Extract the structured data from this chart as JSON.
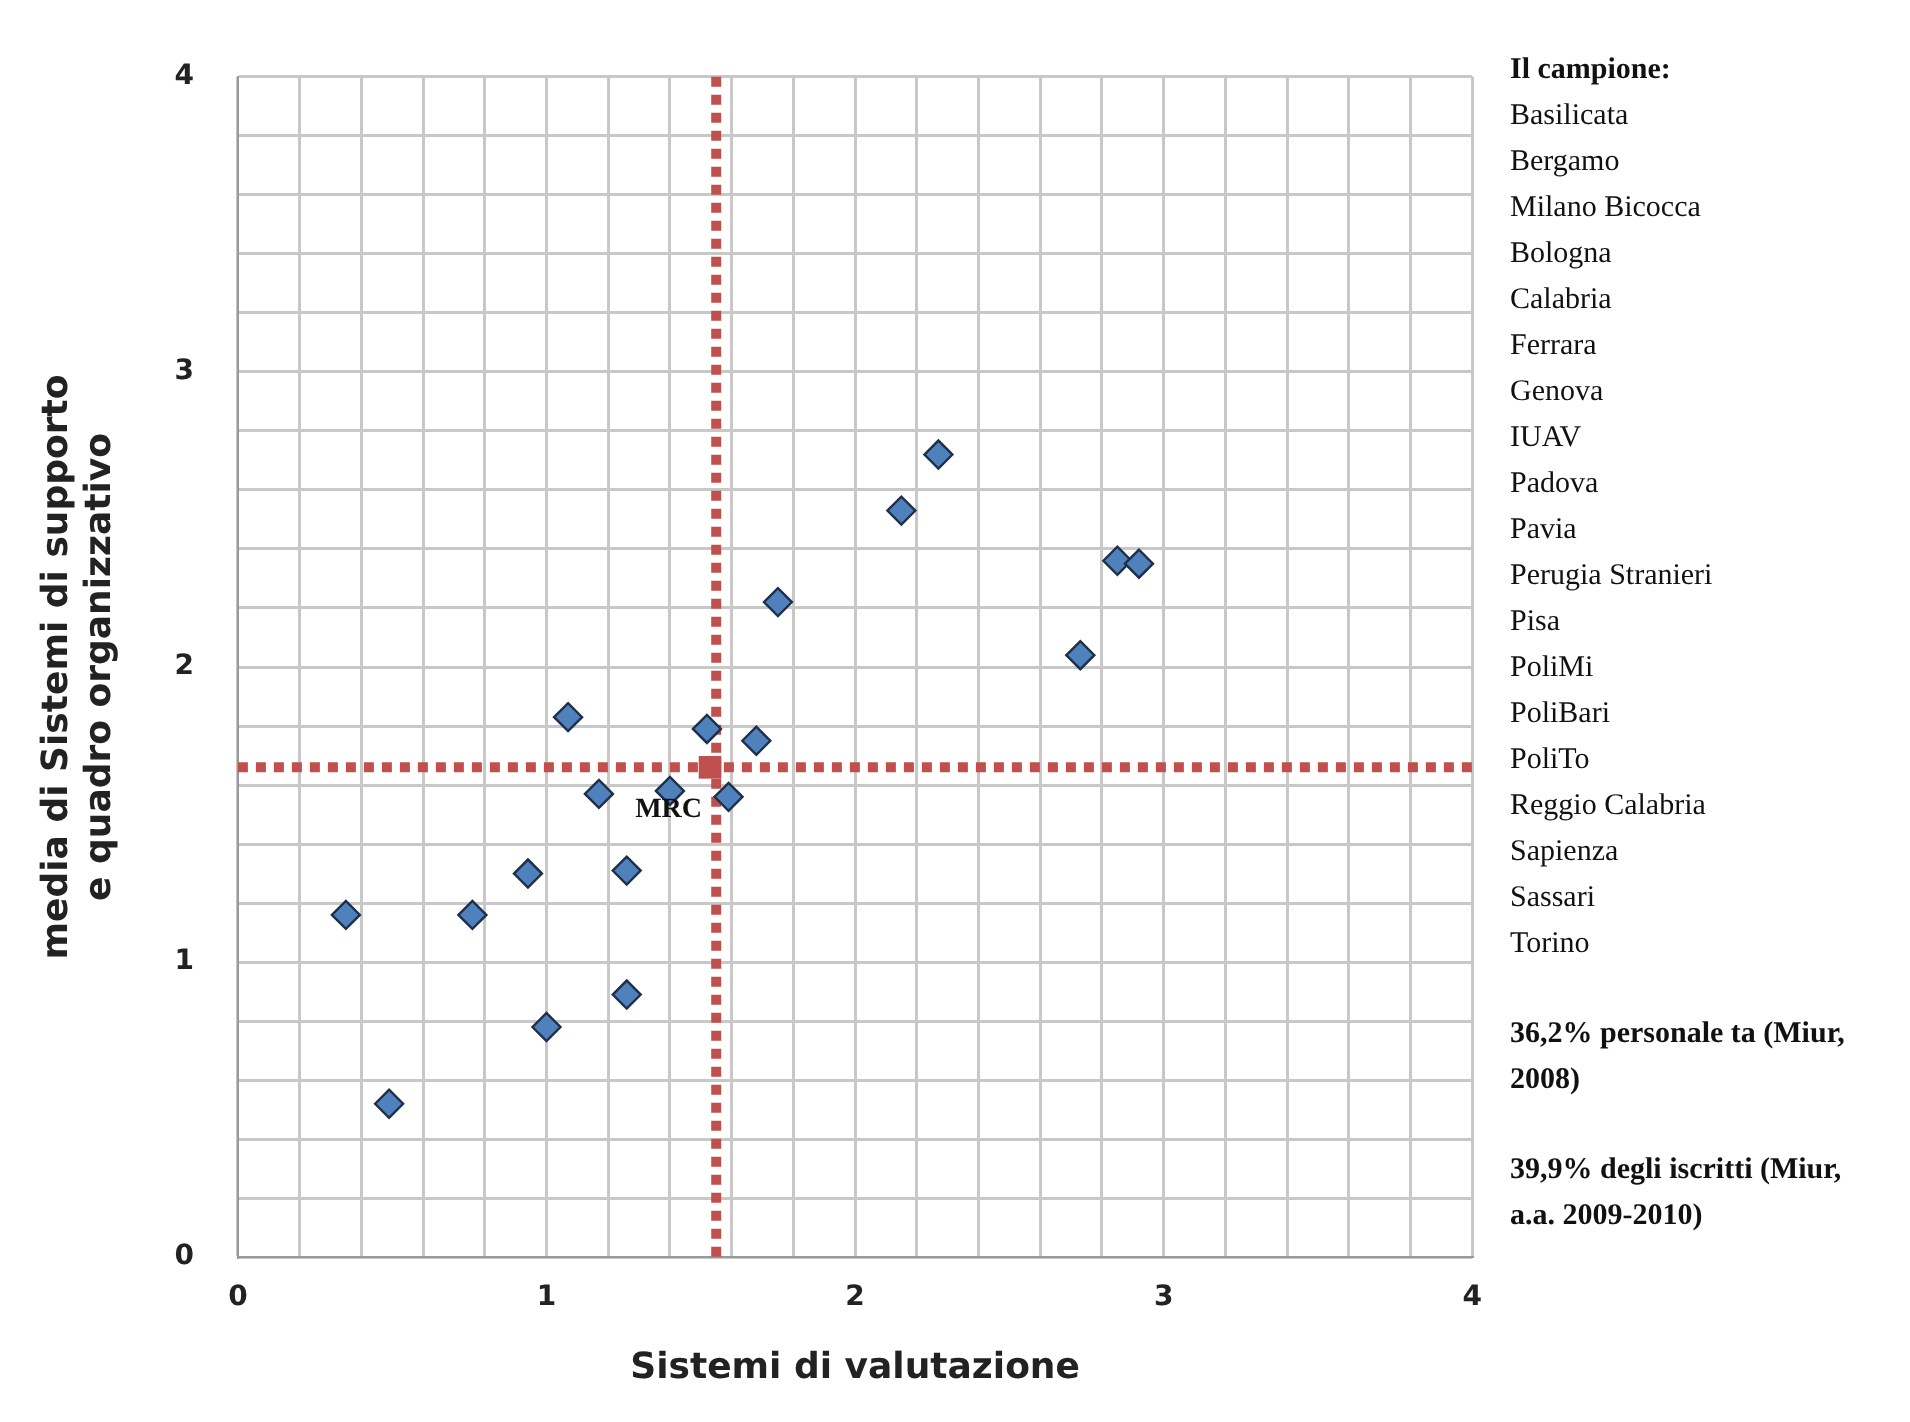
{
  "chart_data": {
    "type": "scatter",
    "xlabel": "Sistemi di valutazione",
    "ylabel": "media di Sistemi di supporto e quadro organizzativo",
    "xlim": [
      0,
      4
    ],
    "ylim": [
      0,
      4
    ],
    "xticks": [
      0,
      {
        "value": 0.2,
        "label": null
      },
      {
        "value": 0.4,
        "label": null
      },
      {
        "value": 0.6,
        "label": null
      },
      {
        "value": 0.8,
        "label": null
      },
      1,
      {
        "value": 1.2,
        "label": null
      },
      {
        "value": 1.4,
        "label": null
      },
      {
        "value": 1.6,
        "label": null
      },
      {
        "value": 1.8,
        "label": null
      },
      2,
      {
        "value": 2.2,
        "label": null
      },
      {
        "value": 2.4,
        "label": null
      },
      {
        "value": 2.6,
        "label": null
      },
      {
        "value": 2.8,
        "label": null
      },
      3,
      {
        "value": 3.2,
        "label": null
      },
      {
        "value": 3.4,
        "label": null
      },
      {
        "value": 3.6,
        "label": null
      },
      {
        "value": 3.8,
        "label": null
      },
      4
    ],
    "yticks": [
      0,
      {
        "value": 0.2,
        "label": null
      },
      {
        "value": 0.4,
        "label": null
      },
      {
        "value": 0.6,
        "label": null
      },
      {
        "value": 0.8,
        "label": null
      },
      1,
      {
        "value": 1.2,
        "label": null
      },
      {
        "value": 1.4,
        "label": null
      },
      {
        "value": 1.6,
        "label": null
      },
      {
        "value": 1.8,
        "label": null
      },
      2,
      {
        "value": 2.2,
        "label": null
      },
      {
        "value": 2.4,
        "label": null
      },
      {
        "value": 2.6,
        "label": null
      },
      {
        "value": 2.8,
        "label": null
      },
      3,
      {
        "value": 3.2,
        "label": null
      },
      {
        "value": 3.4,
        "label": null
      },
      {
        "value": 3.6,
        "label": null
      },
      {
        "value": 3.8,
        "label": null
      },
      4
    ],
    "grid": true,
    "series": [
      {
        "color": "#4f81bd",
        "marker": "diamond",
        "x": [
          0.35,
          0.49,
          0.76,
          0.94,
          1.0,
          1.07,
          1.17,
          1.26,
          1.26,
          1.4,
          1.52,
          1.59,
          1.68,
          1.75,
          2.15,
          2.27,
          2.73,
          2.85,
          2.92
        ],
        "values": [
          1.16,
          0.52,
          1.16,
          1.3,
          0.78,
          1.83,
          1.57,
          1.31,
          0.89,
          1.58,
          1.79,
          1.56,
          1.75,
          2.22,
          2.53,
          2.72,
          2.04,
          2.36,
          2.35
        ]
      },
      {
        "name": "MRC",
        "color": "#c0504d",
        "marker": "square",
        "x": [
          1.53
        ],
        "values": [
          1.66
        ]
      }
    ],
    "ref_lines": [
      {
        "axis": "x",
        "value": 1.55,
        "color": "#c0504d",
        "line_style": "dotted"
      },
      {
        "axis": "y",
        "value": 1.66,
        "color": "#c0504d",
        "line_style": "dotted"
      }
    ],
    "annotations": [
      "Il campione:",
      "Basilicata",
      "Bergamo",
      "Milano Bicocca",
      "Bologna",
      "Calabria",
      "Ferrara",
      "Genova",
      "IUAV",
      "Padova",
      "Pavia",
      "Perugia Stranieri",
      "Pisa",
      "PoliMi",
      "PoliBari",
      "PoliTo",
      "Reggio Calabria",
      "Sapienza",
      "Sassari",
      "Torino",
      "36,2% personale ta (Miur, 2008)",
      "39,9% degli iscritti (Miur, a.a. 2009-2010)"
    ]
  }
}
